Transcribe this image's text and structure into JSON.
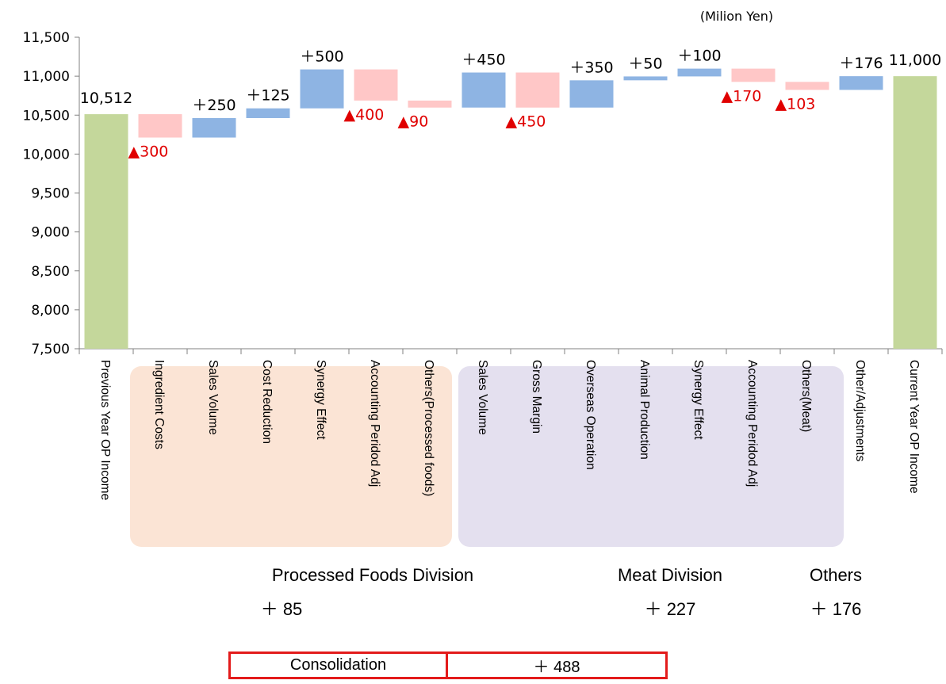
{
  "unit_label": "(Milion Yen)",
  "colors": {
    "total": "#c4d79b",
    "increase": "#8eb4e3",
    "decrease": "#ffc7c7",
    "decrease_text": "#e00000",
    "division_processed_bg": "#fbe4d5",
    "division_meat_bg": "#e4e0ef",
    "consolidation_border": "#e31b1b"
  },
  "chart_data": {
    "type": "bar",
    "subtype": "waterfall",
    "ylim": [
      7500,
      11500
    ],
    "yticks": [
      "7,500",
      "8,000",
      "8,500",
      "9,000",
      "9,500",
      "10,000",
      "10,500",
      "11,000",
      "11,500"
    ],
    "ytick_values": [
      7500,
      8000,
      8500,
      9000,
      9500,
      10000,
      10500,
      11000,
      11500
    ],
    "grid": false,
    "bars": [
      {
        "category": "Previous Year OP Income",
        "kind": "total",
        "start": 7500,
        "end": 10512,
        "label": "10,512"
      },
      {
        "category": "Ingredient Costs",
        "kind": "decrease",
        "start": 10512,
        "end": 10212,
        "label": "▲300"
      },
      {
        "category": "Sales Volume",
        "kind": "increase",
        "start": 10212,
        "end": 10462,
        "label": "＋250"
      },
      {
        "category": "Cost Reduction",
        "kind": "increase",
        "start": 10462,
        "end": 10587,
        "label": "＋125"
      },
      {
        "category": "Synergy Effect",
        "kind": "increase",
        "start": 10587,
        "end": 11087,
        "label": "＋500"
      },
      {
        "category": "Accounting Peridod Adj",
        "kind": "decrease",
        "start": 11087,
        "end": 10687,
        "label": "▲400"
      },
      {
        "category": "Others(Processed foods)",
        "kind": "decrease",
        "start": 10687,
        "end": 10597,
        "label": "▲90"
      },
      {
        "category": "Sales Volume",
        "kind": "increase",
        "start": 10597,
        "end": 11047,
        "label": "＋450"
      },
      {
        "category": "Gross Margin",
        "kind": "decrease",
        "start": 11047,
        "end": 10597,
        "label": "▲450"
      },
      {
        "category": "Overseas Operation",
        "kind": "increase",
        "start": 10597,
        "end": 10947,
        "label": "＋350"
      },
      {
        "category": "Animal Production",
        "kind": "increase",
        "start": 10947,
        "end": 10997,
        "label": "＋50"
      },
      {
        "category": "Synergy Effect",
        "kind": "increase",
        "start": 10997,
        "end": 11097,
        "label": "＋100"
      },
      {
        "category": "Accounting Peridod Adj",
        "kind": "decrease",
        "start": 11097,
        "end": 10927,
        "label": "▲170"
      },
      {
        "category": "Others(Meat)",
        "kind": "decrease",
        "start": 10927,
        "end": 10824,
        "label": "▲103"
      },
      {
        "category": "Other/Adjustments",
        "kind": "increase",
        "start": 10824,
        "end": 11000,
        "label": "＋176"
      },
      {
        "category": "Current Year OP Income",
        "kind": "total",
        "start": 7500,
        "end": 11000,
        "label": "11,000"
      }
    ]
  },
  "divisions": [
    {
      "name": "Processed Foods Division",
      "total": "＋ 85",
      "first_bar": 1,
      "last_bar": 6
    },
    {
      "name": "Meat Division",
      "total": "＋ 227",
      "first_bar": 7,
      "last_bar": 13
    },
    {
      "name": "Others",
      "total": "＋ 176",
      "first_bar": 14,
      "last_bar": 14
    }
  ],
  "consolidation": {
    "label": "Consolidation",
    "value": "＋ 488"
  }
}
